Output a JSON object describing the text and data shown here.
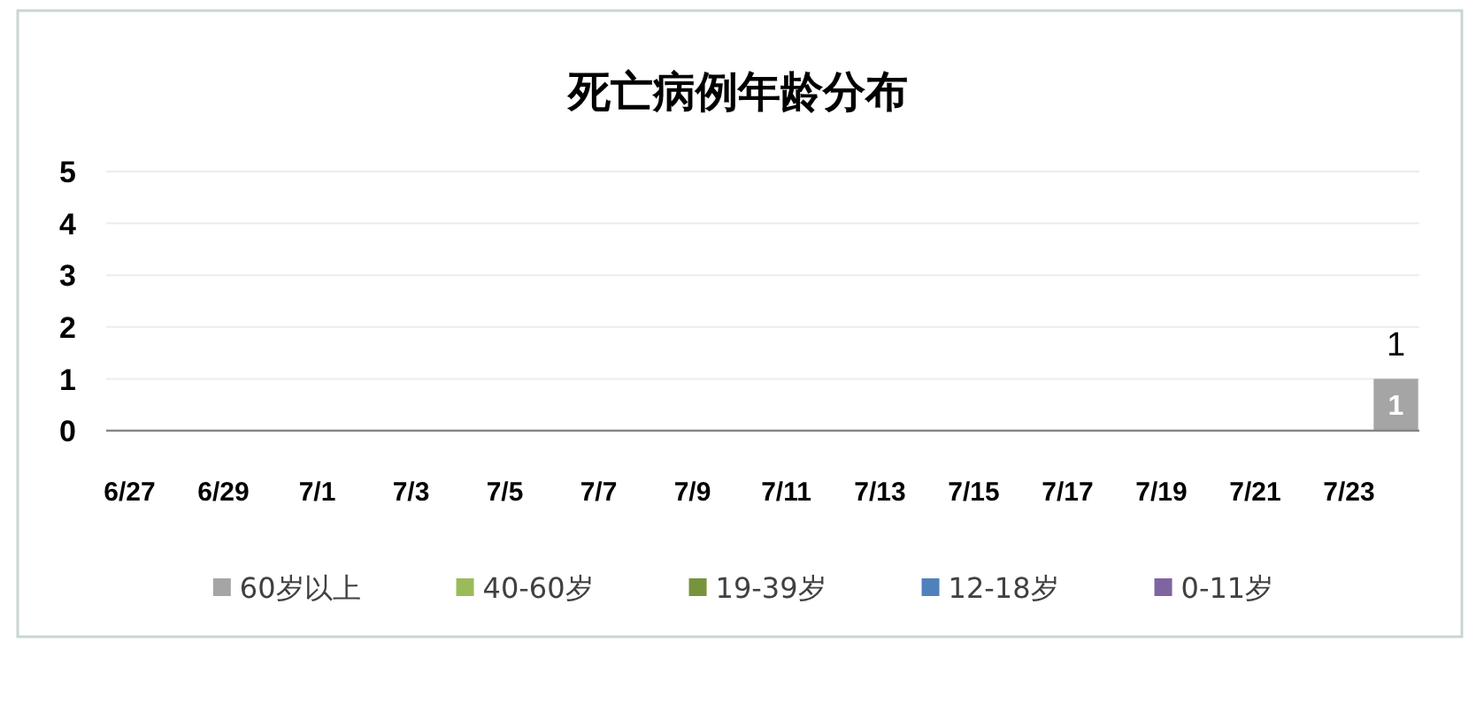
{
  "chart_data": {
    "type": "bar",
    "title": "死亡病例年龄分布",
    "categories": [
      "6/27",
      null,
      "6/29",
      null,
      "7/1",
      null,
      "7/3",
      null,
      "7/5",
      null,
      "7/7",
      null,
      "7/9",
      null,
      "7/11",
      null,
      "7/13",
      null,
      "7/15",
      null,
      "7/17",
      null,
      "7/19",
      null,
      "7/21",
      null,
      "7/23",
      null
    ],
    "stacked": true,
    "series": [
      {
        "name": "60岁以上",
        "color": "#a5a5a5",
        "values": [
          0,
          0,
          0,
          0,
          0,
          0,
          0,
          0,
          0,
          0,
          0,
          0,
          0,
          0,
          0,
          0,
          0,
          0,
          0,
          0,
          0,
          0,
          0,
          0,
          0,
          0,
          0,
          1
        ],
        "value_labels": [
          null,
          null,
          null,
          null,
          null,
          null,
          null,
          null,
          null,
          null,
          null,
          null,
          null,
          null,
          null,
          null,
          null,
          null,
          null,
          null,
          null,
          null,
          null,
          null,
          null,
          null,
          null,
          "1"
        ]
      },
      {
        "name": "40-60岁",
        "color": "#9bbb59",
        "values": [
          0,
          0,
          0,
          0,
          0,
          0,
          0,
          0,
          0,
          0,
          0,
          0,
          0,
          0,
          0,
          0,
          0,
          0,
          0,
          0,
          0,
          0,
          0,
          0,
          0,
          0,
          0,
          0
        ]
      },
      {
        "name": "19-39岁",
        "color": "#77933c",
        "values": [
          0,
          0,
          0,
          0,
          0,
          0,
          0,
          0,
          0,
          0,
          0,
          0,
          0,
          0,
          0,
          0,
          0,
          0,
          0,
          0,
          0,
          0,
          0,
          0,
          0,
          0,
          0,
          0
        ]
      },
      {
        "name": "12-18岁",
        "color": "#4f81bd",
        "values": [
          0,
          0,
          0,
          0,
          0,
          0,
          0,
          0,
          0,
          0,
          0,
          0,
          0,
          0,
          0,
          0,
          0,
          0,
          0,
          0,
          0,
          0,
          0,
          0,
          0,
          0,
          0,
          0
        ]
      },
      {
        "name": "0-11岁",
        "color": "#8064a2",
        "values": [
          0,
          0,
          0,
          0,
          0,
          0,
          0,
          0,
          0,
          0,
          0,
          0,
          0,
          0,
          0,
          0,
          0,
          0,
          0,
          0,
          0,
          0,
          0,
          0,
          0,
          0,
          0,
          0
        ]
      }
    ],
    "totals": [
      null,
      null,
      null,
      null,
      null,
      null,
      null,
      null,
      null,
      null,
      null,
      null,
      null,
      null,
      null,
      null,
      null,
      null,
      null,
      null,
      null,
      null,
      null,
      null,
      null,
      null,
      null,
      "1"
    ],
    "ylim": [
      0,
      5
    ],
    "yticks": [
      0,
      1,
      2,
      3,
      4,
      5
    ],
    "grid": "y",
    "legend": "bottom"
  }
}
